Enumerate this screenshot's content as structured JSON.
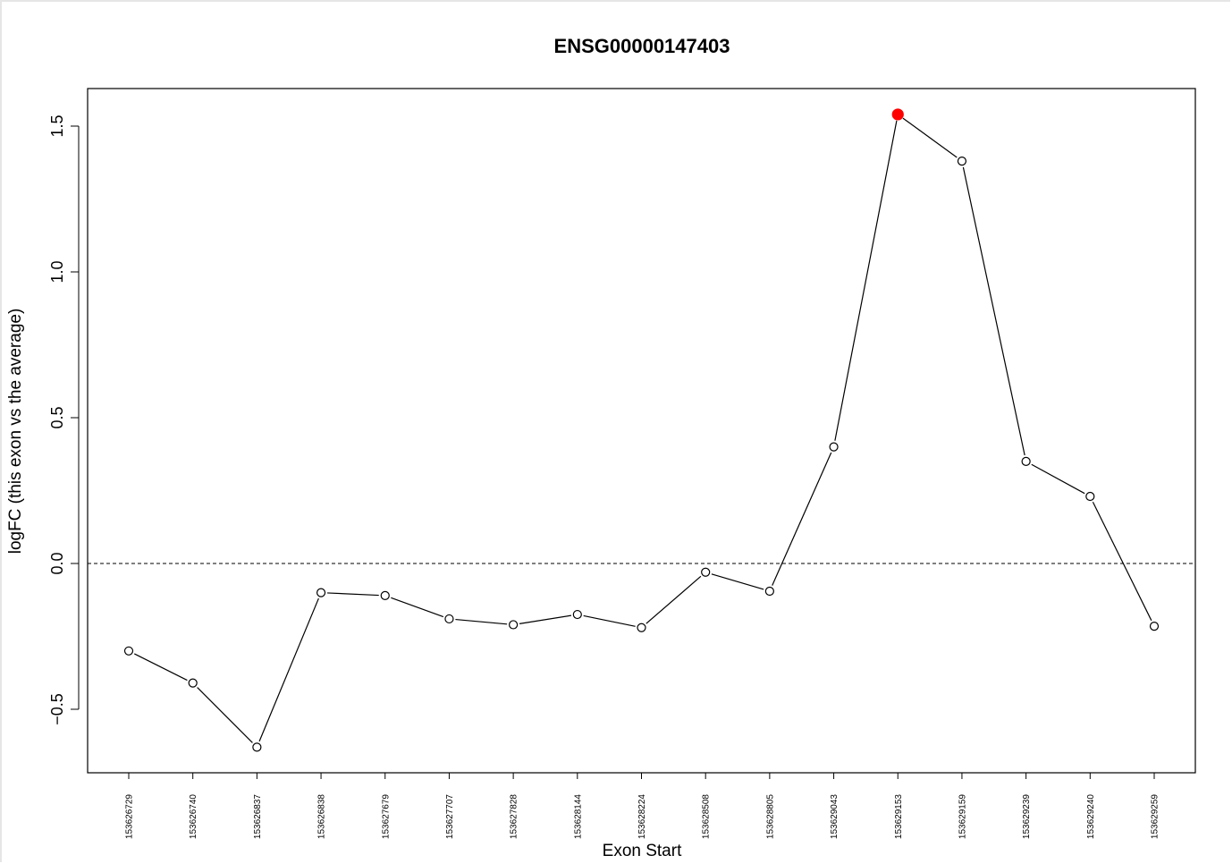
{
  "chart_data": {
    "type": "line",
    "title": "ENSG00000147403",
    "xlabel": "Exon Start",
    "ylabel": "logFC (this exon vs the average)",
    "categories": [
      "153626729",
      "153626740",
      "153626837",
      "153626838",
      "153627679",
      "153627707",
      "153627828",
      "153628144",
      "153628224",
      "153628508",
      "153628805",
      "153629043",
      "153629153",
      "153629159",
      "153629239",
      "153629240",
      "153629259"
    ],
    "series": [
      {
        "name": "logFC",
        "values": [
          -0.3,
          -0.41,
          -0.63,
          -0.1,
          -0.11,
          -0.19,
          -0.21,
          -0.175,
          -0.22,
          -0.03,
          -0.095,
          0.4,
          1.54,
          1.38,
          0.35,
          0.23,
          -0.215
        ]
      }
    ],
    "highlight_index": 12,
    "highlight_color": "#ff0000",
    "reference_line": 0.0,
    "ylim": [
      -0.7,
      1.65
    ],
    "yticks": [
      -0.5,
      0.0,
      0.5,
      1.0,
      1.5
    ],
    "ytick_labels": [
      "−0.5",
      "0.0",
      "0.5",
      "1.0",
      "1.5"
    ],
    "grid": false,
    "line_color": "#000000"
  }
}
